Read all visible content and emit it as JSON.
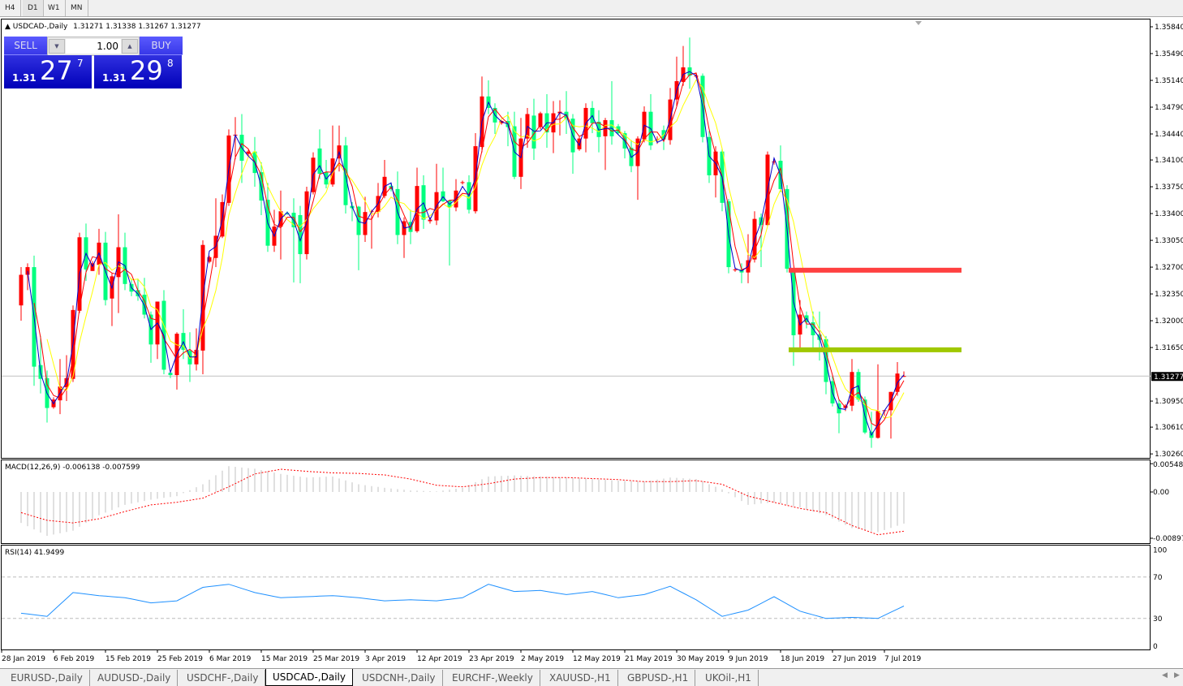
{
  "timeframes": [
    {
      "label": "H4",
      "active": false
    },
    {
      "label": "D1",
      "active": true
    },
    {
      "label": "W1",
      "active": false
    },
    {
      "label": "MN",
      "active": false
    }
  ],
  "header": {
    "symbol": "USDCAD-,Daily",
    "ohlc": "1.31271 1.31338 1.31267 1.31277"
  },
  "trade_panel": {
    "sell_label": "SELL",
    "buy_label": "BUY",
    "lot": "1.00",
    "sell_price": {
      "big": "1.31",
      "main": "27",
      "pip": "7"
    },
    "buy_price": {
      "big": "1.31",
      "main": "29",
      "pip": "8"
    },
    "color": "#0000c0"
  },
  "tabs": [
    {
      "label": "EURUSD-,Daily"
    },
    {
      "label": "AUDUSD-,Daily"
    },
    {
      "label": "USDCHF-,Daily"
    },
    {
      "label": "USDCAD-,Daily",
      "active": true
    },
    {
      "label": "USDCNH-,Daily"
    },
    {
      "label": "EURCHF-,Weekly"
    },
    {
      "label": "XAUUSD-,H1"
    },
    {
      "label": "GBPUSD-,H1"
    },
    {
      "label": "UKOil-,H1"
    }
  ],
  "chart_data": {
    "type": "candlestick",
    "colors": {
      "bull": "#ff0000",
      "bear": "#00ff7f",
      "ma_fast": "#0000cc",
      "ma_mid": "#ff0000",
      "ma_slow": "#ffff00",
      "grid_line": "#c0c0c0",
      "macd_hist": "#c0c0c0",
      "macd_signal": "#ff0000",
      "rsi": "#1e90ff"
    },
    "price_ticks": [
      "1.35840",
      "1.35490",
      "1.35140",
      "1.34790",
      "1.34440",
      "1.34100",
      "1.33750",
      "1.33400",
      "1.33050",
      "1.32700",
      "1.32350",
      "1.32000",
      "1.31650",
      "1.30950",
      "1.30610",
      "1.30260"
    ],
    "ylim": [
      1.3026,
      1.3584
    ],
    "current_price": "1.31277",
    "date_ticks": [
      "28 Jan 2019",
      "6 Feb 2019",
      "15 Feb 2019",
      "25 Feb 2019",
      "6 Mar 2019",
      "15 Mar 2019",
      "25 Mar 2019",
      "3 Apr 2019",
      "12 Apr 2019",
      "23 Apr 2019",
      "2 May 2019",
      "12 May 2019",
      "21 May 2019",
      "30 May 2019",
      "9 Jun 2019",
      "18 Jun 2019",
      "27 Jun 2019",
      "7 Jul 2019"
    ],
    "candles_ohlc": [
      [
        1.322,
        1.327,
        1.32,
        1.326
      ],
      [
        1.326,
        1.3275,
        1.324,
        1.327
      ],
      [
        1.327,
        1.3285,
        1.3115,
        1.314
      ],
      [
        1.3142,
        1.318,
        1.3105,
        1.3124
      ],
      [
        1.3125,
        1.3135,
        1.3067,
        1.3086
      ],
      [
        1.3087,
        1.31,
        1.3085,
        1.3097
      ],
      [
        1.3096,
        1.315,
        1.3078,
        1.3114
      ],
      [
        1.3113,
        1.3155,
        1.3095,
        1.3125
      ],
      [
        1.3124,
        1.322,
        1.312,
        1.3214
      ],
      [
        1.3213,
        1.3315,
        1.321,
        1.3309
      ],
      [
        1.3309,
        1.3327,
        1.3252,
        1.3267
      ],
      [
        1.3265,
        1.3278,
        1.3265,
        1.3275
      ],
      [
        1.3273,
        1.332,
        1.326,
        1.3302
      ],
      [
        1.3302,
        1.3316,
        1.322,
        1.3227
      ],
      [
        1.3229,
        1.3262,
        1.3193,
        1.3258
      ],
      [
        1.3257,
        1.3339,
        1.321,
        1.3296
      ],
      [
        1.3296,
        1.3315,
        1.324,
        1.3248
      ],
      [
        1.3248,
        1.3255,
        1.3232,
        1.3238
      ],
      [
        1.324,
        1.3255,
        1.3226,
        1.3232
      ],
      [
        1.3234,
        1.3256,
        1.3203,
        1.3208
      ],
      [
        1.3208,
        1.3212,
        1.3145,
        1.3169
      ],
      [
        1.3169,
        1.3225,
        1.315,
        1.3225
      ],
      [
        1.3226,
        1.324,
        1.313,
        1.3136
      ],
      [
        1.3132,
        1.3135,
        1.3125,
        1.3129
      ],
      [
        1.3129,
        1.3185,
        1.311,
        1.3183
      ],
      [
        1.3184,
        1.3215,
        1.315,
        1.3162
      ],
      [
        1.3161,
        1.3185,
        1.312,
        1.3143
      ],
      [
        1.3143,
        1.319,
        1.3135,
        1.3162
      ],
      [
        1.3161,
        1.3305,
        1.313,
        1.3299
      ],
      [
        1.3277,
        1.3285,
        1.3275,
        1.3283
      ],
      [
        1.3282,
        1.336,
        1.327,
        1.3311
      ],
      [
        1.331,
        1.3365,
        1.3308,
        1.3355
      ],
      [
        1.3354,
        1.345,
        1.335,
        1.3442
      ],
      [
        1.3442,
        1.3466,
        1.3411,
        1.3443
      ],
      [
        1.3443,
        1.347,
        1.338,
        1.3409
      ],
      [
        1.3418,
        1.3423,
        1.3415,
        1.3421
      ],
      [
        1.3421,
        1.344,
        1.3375,
        1.3393
      ],
      [
        1.3394,
        1.3407,
        1.3338,
        1.3357
      ],
      [
        1.3358,
        1.338,
        1.329,
        1.3298
      ],
      [
        1.3298,
        1.3345,
        1.329,
        1.3323
      ],
      [
        1.3323,
        1.337,
        1.328,
        1.3343
      ],
      [
        1.3341,
        1.3343,
        1.3338,
        1.334
      ],
      [
        1.3341,
        1.336,
        1.325,
        1.3322
      ],
      [
        1.3338,
        1.335,
        1.3249,
        1.3287
      ],
      [
        1.3287,
        1.3375,
        1.328,
        1.3369
      ],
      [
        1.3368,
        1.342,
        1.3365,
        1.3413
      ],
      [
        1.3425,
        1.345,
        1.3385,
        1.3392
      ],
      [
        1.3394,
        1.341,
        1.3373,
        1.3378
      ],
      [
        1.3378,
        1.3455,
        1.3375,
        1.3412
      ],
      [
        1.3412,
        1.3455,
        1.3395,
        1.3429
      ],
      [
        1.3429,
        1.344,
        1.334,
        1.3351
      ],
      [
        1.335,
        1.3355,
        1.333,
        1.3347
      ],
      [
        1.3349,
        1.335,
        1.3266,
        1.3312
      ],
      [
        1.3312,
        1.3362,
        1.3303,
        1.3342
      ],
      [
        1.3342,
        1.3345,
        1.3294,
        1.3343
      ],
      [
        1.3342,
        1.338,
        1.3335,
        1.3363
      ],
      [
        1.3363,
        1.341,
        1.336,
        1.3388
      ],
      [
        1.3376,
        1.338,
        1.3369,
        1.3372
      ],
      [
        1.3372,
        1.3395,
        1.33,
        1.3312
      ],
      [
        1.3312,
        1.3335,
        1.3282,
        1.333
      ],
      [
        1.3329,
        1.3345,
        1.33,
        1.3316
      ],
      [
        1.3317,
        1.34,
        1.3315,
        1.3376
      ],
      [
        1.3377,
        1.339,
        1.332,
        1.3332
      ],
      [
        1.333,
        1.3335,
        1.3327,
        1.3332
      ],
      [
        1.3331,
        1.3405,
        1.3325,
        1.3368
      ],
      [
        1.3369,
        1.34,
        1.3355,
        1.3356
      ],
      [
        1.3357,
        1.3358,
        1.3272,
        1.3348
      ],
      [
        1.3348,
        1.3385,
        1.3343,
        1.337
      ],
      [
        1.338,
        1.3383,
        1.3378,
        1.3381
      ],
      [
        1.3381,
        1.339,
        1.334,
        1.3345
      ],
      [
        1.3343,
        1.3445,
        1.334,
        1.3428
      ],
      [
        1.3427,
        1.3519,
        1.342,
        1.3493
      ],
      [
        1.3493,
        1.3514,
        1.347,
        1.3478
      ],
      [
        1.3478,
        1.3484,
        1.3444,
        1.3459
      ],
      [
        1.3458,
        1.3462,
        1.3456,
        1.3461
      ],
      [
        1.3461,
        1.3473,
        1.3428,
        1.3453
      ],
      [
        1.3454,
        1.3473,
        1.3385,
        1.3388
      ],
      [
        1.3388,
        1.3465,
        1.3372,
        1.3438
      ],
      [
        1.3438,
        1.3478,
        1.3426,
        1.347
      ],
      [
        1.3468,
        1.349,
        1.341,
        1.3425
      ],
      [
        1.3453,
        1.3473,
        1.345,
        1.3471
      ],
      [
        1.3471,
        1.3496,
        1.3426,
        1.3446
      ],
      [
        1.3446,
        1.3487,
        1.3419,
        1.3471
      ],
      [
        1.3471,
        1.3488,
        1.3442,
        1.3473
      ],
      [
        1.3473,
        1.35,
        1.3444,
        1.3464
      ],
      [
        1.3464,
        1.347,
        1.3392,
        1.342
      ],
      [
        1.3424,
        1.344,
        1.3422,
        1.3438
      ],
      [
        1.3438,
        1.3484,
        1.342,
        1.3478
      ],
      [
        1.3478,
        1.3487,
        1.3445,
        1.3458
      ],
      [
        1.346,
        1.3475,
        1.342,
        1.344
      ],
      [
        1.3441,
        1.3465,
        1.3397,
        1.3462
      ],
      [
        1.3462,
        1.3513,
        1.343,
        1.3441
      ],
      [
        1.3454,
        1.3457,
        1.3443,
        1.3445
      ],
      [
        1.3445,
        1.3448,
        1.3412,
        1.3425
      ],
      [
        1.3426,
        1.3436,
        1.3394,
        1.3402
      ],
      [
        1.3402,
        1.3441,
        1.3358,
        1.3438
      ],
      [
        1.3437,
        1.348,
        1.3433,
        1.3473
      ],
      [
        1.3473,
        1.3496,
        1.3423,
        1.3429
      ],
      [
        1.3436,
        1.3441,
        1.3431,
        1.3437
      ],
      [
        1.3449,
        1.3455,
        1.3423,
        1.3437
      ],
      [
        1.3436,
        1.3504,
        1.343,
        1.3489
      ],
      [
        1.3489,
        1.3545,
        1.348,
        1.3513
      ],
      [
        1.3512,
        1.3559,
        1.3507,
        1.3531
      ],
      [
        1.3531,
        1.357,
        1.3503,
        1.352
      ],
      [
        1.352,
        1.3523,
        1.3517,
        1.352
      ],
      [
        1.352,
        1.3523,
        1.3433,
        1.344
      ],
      [
        1.344,
        1.3448,
        1.338,
        1.339
      ],
      [
        1.339,
        1.3428,
        1.3361,
        1.3421
      ],
      [
        1.3421,
        1.3425,
        1.3343,
        1.3354
      ],
      [
        1.3356,
        1.3359,
        1.3262,
        1.327
      ],
      [
        1.3267,
        1.327,
        1.3264,
        1.3267
      ],
      [
        1.3267,
        1.3275,
        1.3249,
        1.3263
      ],
      [
        1.3263,
        1.3313,
        1.3249,
        1.3279
      ],
      [
        1.328,
        1.3343,
        1.3276,
        1.3333
      ],
      [
        1.3335,
        1.334,
        1.327,
        1.3325
      ],
      [
        1.3325,
        1.3421,
        1.3323,
        1.3417
      ],
      [
        1.3408,
        1.3412,
        1.3404,
        1.3408
      ],
      [
        1.3409,
        1.3429,
        1.3368,
        1.3372
      ],
      [
        1.3372,
        1.3377,
        1.3263,
        1.3268
      ],
      [
        1.3268,
        1.3268,
        1.3141,
        1.3181
      ],
      [
        1.3182,
        1.3227,
        1.316,
        1.3208
      ],
      [
        1.3207,
        1.3212,
        1.319,
        1.3198
      ],
      [
        1.3198,
        1.3212,
        1.3165,
        1.3181
      ],
      [
        1.3182,
        1.3212,
        1.3148,
        1.3175
      ],
      [
        1.3176,
        1.318,
        1.3104,
        1.312
      ],
      [
        1.3121,
        1.3127,
        1.3088,
        1.3092
      ],
      [
        1.3092,
        1.3097,
        1.3053,
        1.3079
      ],
      [
        1.3086,
        1.3091,
        1.3082,
        1.3089
      ],
      [
        1.3089,
        1.315,
        1.3082,
        1.3133
      ],
      [
        1.3133,
        1.3137,
        1.3094,
        1.3097
      ],
      [
        1.3097,
        1.3101,
        1.3052,
        1.3054
      ],
      [
        1.3055,
        1.3081,
        1.3034,
        1.3047
      ],
      [
        1.3047,
        1.3143,
        1.3046,
        1.3082
      ],
      [
        1.3082,
        1.3083,
        1.3076,
        1.3083
      ],
      [
        1.3083,
        1.3107,
        1.3046,
        1.3107
      ],
      [
        1.3107,
        1.3146,
        1.3102,
        1.3131
      ],
      [
        1.31271,
        1.31338,
        1.31267,
        1.31277
      ]
    ],
    "horizontal_lines": [
      {
        "price": 1.3266,
        "color": "#ff4040"
      },
      {
        "price": 1.3162,
        "color": "#a0c800"
      }
    ],
    "macd": {
      "label": "MACD(12,26,9) -0.006138 -0.007599",
      "ticks": [
        "0.005484",
        "0.00",
        "-0.00897"
      ],
      "ylim": [
        -0.008971,
        0.005484
      ],
      "main": [
        -0.006,
        -0.0085,
        -0.0075,
        -0.0045,
        -0.0025,
        -0.0015,
        -0.0008,
        0.0015,
        0.005,
        0.0045,
        0.0035,
        0.0028,
        0.003,
        0.0015,
        0.0008,
        0.0003,
        0.0001,
        0.0008,
        0.003,
        0.0032,
        0.003,
        0.0028,
        0.0025,
        0.0022,
        0.002,
        0.0028,
        0.0025,
        0.0005,
        -0.0025,
        -0.002,
        -0.003,
        -0.0045,
        -0.007,
        -0.0078,
        -0.006138
      ],
      "signal": [
        -0.004,
        -0.0055,
        -0.006,
        -0.0052,
        -0.0038,
        -0.0025,
        -0.002,
        -0.0012,
        0.001,
        0.0035,
        0.0044,
        0.004,
        0.0037,
        0.0036,
        0.0033,
        0.0025,
        0.0013,
        0.001,
        0.0016,
        0.0025,
        0.0028,
        0.0028,
        0.0026,
        0.0024,
        0.002,
        0.002,
        0.0022,
        0.0015,
        -0.0008,
        -0.002,
        -0.0032,
        -0.004,
        -0.0065,
        -0.0083,
        -0.007599
      ]
    },
    "rsi": {
      "label": "RSI(14) 41.9499",
      "ticks": [
        "100",
        "70",
        "30",
        "0"
      ],
      "ylim": [
        0,
        100
      ],
      "levels": [
        70,
        30
      ],
      "values": [
        35,
        32,
        55,
        52,
        50,
        45,
        47,
        60,
        63,
        55,
        50,
        51,
        52,
        50,
        47,
        48,
        47,
        50,
        63,
        56,
        57,
        53,
        56,
        50,
        53,
        61,
        48,
        32,
        38,
        51,
        37,
        30,
        31,
        30,
        41.9499
      ]
    }
  }
}
